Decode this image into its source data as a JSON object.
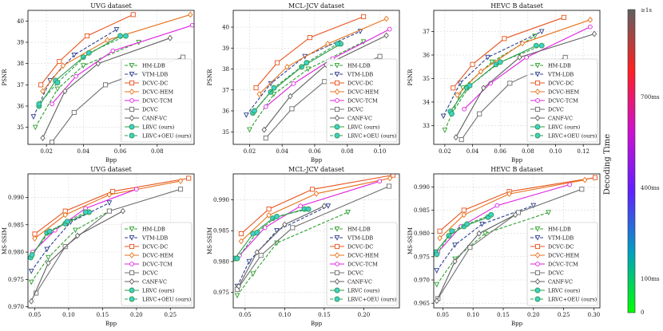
{
  "colorbar": {
    "label": "Decoding Time",
    "ticks": [
      "≥1s",
      "700ms",
      "400ms",
      "100ms",
      "0"
    ],
    "tick_values": [
      1000,
      700,
      400,
      100,
      0
    ]
  },
  "styles": {
    "HM-LDB": {
      "color": "#2ca02c",
      "dash": "4,2",
      "marker": "tri_down"
    },
    "VTM-LDB": {
      "color": "#2d3f8f",
      "dash": "4,2",
      "marker": "tri_down"
    },
    "DCVC-DC": {
      "color": "#e8531c",
      "dash": "",
      "marker": "square"
    },
    "DCVC-HEM": {
      "color": "#e8721c",
      "dash": "",
      "marker": "diamond"
    },
    "DCVC-TCM": {
      "color": "#e020e0",
      "dash": "",
      "marker": "circle"
    },
    "DCVC": {
      "color": "#707070",
      "dash": "",
      "marker": "square"
    },
    "CANF-VC": {
      "color": "#606060",
      "dash": "",
      "marker": "diamond"
    },
    "LRVC (ours)": {
      "color": "#2e9e4a",
      "dash": "",
      "marker": "circle_cyan"
    },
    "LRVC+OEU (ours)": {
      "color": "#2e9e4a",
      "dash": "4,2",
      "marker": "circle_cyan"
    }
  },
  "chart_data": [
    {
      "type": "line",
      "title": "UVG dataset",
      "xlabel": "Bpp",
      "ylabel": "PSNR",
      "xlim": [
        0.01,
        0.1
      ],
      "ylim": [
        34.2,
        40.5
      ],
      "xticks": [
        0.02,
        0.04,
        0.06,
        0.08
      ],
      "xtick_labels": [
        "0.02",
        "0.04",
        "0.06",
        "0.08"
      ],
      "yticks": [
        35,
        36,
        37,
        38,
        39,
        40
      ],
      "ytick_labels": [
        "35",
        "36",
        "37",
        "38",
        "39",
        "40"
      ],
      "series": [
        {
          "name": "HM-LDB",
          "x": [
            0.014,
            0.026,
            0.04,
            0.07
          ],
          "y": [
            35.0,
            36.8,
            37.9,
            39.0
          ]
        },
        {
          "name": "VTM-LDB",
          "x": [
            0.013,
            0.022,
            0.035,
            0.058
          ],
          "y": [
            35.5,
            37.2,
            38.4,
            39.6
          ]
        },
        {
          "name": "DCVC-DC",
          "x": [
            0.017,
            0.027,
            0.042,
            0.067
          ],
          "y": [
            37.0,
            38.1,
            39.3,
            40.3
          ]
        },
        {
          "name": "DCVC-HEM",
          "x": [
            0.018,
            0.029,
            0.053,
            0.098
          ],
          "y": [
            36.7,
            37.9,
            39.1,
            40.3
          ]
        },
        {
          "name": "DCVC-TCM",
          "x": [
            0.023,
            0.036,
            0.056,
            0.099
          ],
          "y": [
            36.1,
            37.4,
            38.6,
            39.8
          ]
        },
        {
          "name": "DCVC",
          "x": [
            0.023,
            0.035,
            0.052,
            0.094
          ],
          "y": [
            34.3,
            35.7,
            37.0,
            38.3
          ]
        },
        {
          "name": "CANF-VC",
          "x": [
            0.018,
            0.03,
            0.048,
            0.087
          ],
          "y": [
            34.5,
            36.7,
            38.0,
            39.2
          ]
        },
        {
          "name": "LRVC (ours)",
          "x": [
            0.016,
            0.025,
            0.04,
            0.06
          ],
          "y": [
            36.0,
            37.2,
            38.3,
            39.3
          ]
        },
        {
          "name": "LRVC+OEU (ours)",
          "x": [
            0.016,
            0.026,
            0.043,
            0.063
          ],
          "y": [
            36.1,
            37.1,
            38.5,
            39.3
          ]
        }
      ]
    },
    {
      "type": "line",
      "title": "MCL-JCV dataset",
      "xlabel": "Bpp",
      "ylabel": "PSNR",
      "xlim": [
        0.01,
        0.112
      ],
      "ylim": [
        34.4,
        40.8
      ],
      "xticks": [
        0.02,
        0.04,
        0.06,
        0.08,
        0.1
      ],
      "xtick_labels": [
        "0.02",
        "0.04",
        "0.06",
        "0.08",
        "0.10"
      ],
      "yticks": [
        35,
        36,
        37,
        38,
        39,
        40
      ],
      "ytick_labels": [
        "35",
        "36",
        "37",
        "38",
        "39",
        "40"
      ],
      "series": [
        {
          "name": "HM-LDB",
          "x": [
            0.02,
            0.035,
            0.056,
            0.09
          ],
          "y": [
            35.1,
            36.8,
            38.0,
            39.3
          ]
        },
        {
          "name": "VTM-LDB",
          "x": [
            0.018,
            0.033,
            0.054,
            0.088
          ],
          "y": [
            35.8,
            37.3,
            38.6,
            39.8
          ]
        },
        {
          "name": "DCVC-DC",
          "x": [
            0.024,
            0.037,
            0.057,
            0.09
          ],
          "y": [
            37.1,
            38.3,
            39.5,
            40.5
          ]
        },
        {
          "name": "DCVC-HEM",
          "x": [
            0.026,
            0.043,
            0.068,
            0.104
          ],
          "y": [
            36.8,
            38.1,
            39.2,
            40.4
          ]
        },
        {
          "name": "DCVC-TCM",
          "x": [
            0.03,
            0.047,
            0.071,
            0.106
          ],
          "y": [
            36.2,
            37.3,
            38.5,
            39.9
          ]
        },
        {
          "name": "DCVC",
          "x": [
            0.03,
            0.046,
            0.066,
            0.1
          ],
          "y": [
            34.7,
            36.1,
            37.4,
            38.6
          ]
        },
        {
          "name": "CANF-VC",
          "x": [
            0.029,
            0.045,
            0.067,
            0.104
          ],
          "y": [
            35.1,
            36.7,
            38.2,
            39.6
          ]
        },
        {
          "name": "LRVC (ours)",
          "x": [
            0.022,
            0.033,
            0.052,
            0.076
          ],
          "y": [
            35.9,
            36.9,
            38.1,
            39.2
          ]
        },
        {
          "name": "LRVC+OEU (ours)",
          "x": [
            0.023,
            0.035,
            0.055,
            0.074
          ],
          "y": [
            36.0,
            37.1,
            38.3,
            39.2
          ]
        }
      ]
    },
    {
      "type": "line",
      "title": "HEVC B dataset",
      "xlabel": "Bpp",
      "ylabel": "PSNR",
      "xlim": [
        0.012,
        0.132
      ],
      "ylim": [
        32.2,
        37.9
      ],
      "xticks": [
        0.02,
        0.04,
        0.06,
        0.08,
        0.1,
        0.12
      ],
      "xtick_labels": [
        "0.02",
        "0.04",
        "0.06",
        "0.08",
        "0.10",
        "0.12"
      ],
      "yticks": [
        33,
        34,
        35,
        36,
        37
      ],
      "ytick_labels": [
        "33",
        "34",
        "35",
        "36",
        "37"
      ],
      "series": [
        {
          "name": "HM-LDB",
          "x": [
            0.02,
            0.033,
            0.054,
            0.085
          ],
          "y": [
            32.8,
            34.6,
            35.7,
            36.8
          ]
        },
        {
          "name": "VTM-LDB",
          "x": [
            0.019,
            0.031,
            0.051,
            0.09
          ],
          "y": [
            33.4,
            34.8,
            35.9,
            37.0
          ]
        },
        {
          "name": "DCVC-DC",
          "x": [
            0.026,
            0.04,
            0.063,
            0.106
          ],
          "y": [
            34.6,
            35.6,
            36.7,
            37.6
          ]
        },
        {
          "name": "DCVC-HEM",
          "x": [
            0.029,
            0.046,
            0.076,
            0.125
          ],
          "y": [
            34.3,
            35.3,
            36.5,
            37.5
          ]
        },
        {
          "name": "DCVC-TCM",
          "x": [
            0.034,
            0.053,
            0.079,
            0.125
          ],
          "y": [
            33.7,
            34.8,
            35.9,
            37.2
          ]
        },
        {
          "name": "DCVC",
          "x": [
            0.032,
            0.045,
            0.067,
            0.107
          ],
          "y": [
            32.4,
            33.5,
            34.8,
            35.9
          ]
        },
        {
          "name": "CANF-VC",
          "x": [
            0.028,
            0.048,
            0.074,
            0.128
          ],
          "y": [
            32.5,
            34.6,
            35.9,
            36.9
          ]
        },
        {
          "name": "LRVC (ours)",
          "x": [
            0.024,
            0.036,
            0.057,
            0.086
          ],
          "y": [
            33.6,
            34.6,
            35.6,
            36.4
          ]
        },
        {
          "name": "LRVC+OEU (ours)",
          "x": [
            0.025,
            0.038,
            0.06,
            0.09
          ],
          "y": [
            33.5,
            34.7,
            35.7,
            36.4
          ]
        }
      ]
    },
    {
      "type": "line",
      "title": "UVG dataset",
      "xlabel": "Bpp",
      "ylabel": "MS-SSIM",
      "xlim": [
        0.04,
        0.285
      ],
      "ylim": [
        0.9698,
        0.9943
      ],
      "xticks": [
        0.05,
        0.1,
        0.15,
        0.2,
        0.25
      ],
      "xtick_labels": [
        "0.05",
        "0.10",
        "0.15",
        "0.20",
        "0.25"
      ],
      "yticks": [
        0.97,
        0.975,
        0.98,
        0.985,
        0.99
      ],
      "ytick_labels": [
        "0.970",
        "0.975",
        "0.980",
        "0.985",
        "0.990"
      ],
      "series": [
        {
          "name": "HM-LDB",
          "x": [
            0.045,
            0.07,
            0.11,
            0.16
          ],
          "y": [
            0.9745,
            0.979,
            0.984,
            0.9875
          ]
        },
        {
          "name": "VTM-LDB",
          "x": [
            0.045,
            0.068,
            0.103,
            0.16
          ],
          "y": [
            0.9765,
            0.9805,
            0.9855,
            0.989
          ]
        },
        {
          "name": "DCVC-DC",
          "x": [
            0.05,
            0.095,
            0.165,
            0.277
          ],
          "y": [
            0.9833,
            0.9875,
            0.9911,
            0.9935
          ]
        },
        {
          "name": "DCVC-HEM",
          "x": [
            0.05,
            0.095,
            0.16,
            0.265
          ],
          "y": [
            0.9825,
            0.9868,
            0.9905,
            0.993
          ]
        },
        {
          "name": "DCVC-TCM",
          "x": [
            0.047,
            0.08,
            0.125,
            0.2
          ],
          "y": [
            0.98,
            0.984,
            0.988,
            0.9915
          ]
        },
        {
          "name": "DCVC",
          "x": [
            0.052,
            0.095,
            0.16,
            0.265
          ],
          "y": [
            0.9725,
            0.981,
            0.9875,
            0.9915
          ]
        },
        {
          "name": "CANF-VC",
          "x": [
            0.045,
            0.07,
            0.113,
            0.18
          ],
          "y": [
            0.971,
            0.978,
            0.983,
            0.9875
          ]
        },
        {
          "name": "LRVC (ours)",
          "x": [
            0.044,
            0.068,
            0.095,
            0.13
          ],
          "y": [
            0.979,
            0.9835,
            0.9852,
            0.9873
          ]
        },
        {
          "name": "LRVC+OEU (ours)",
          "x": [
            0.046,
            0.072,
            0.098,
            0.125
          ],
          "y": [
            0.9795,
            0.9838,
            0.9856,
            0.9873
          ]
        }
      ]
    },
    {
      "type": "line",
      "title": "MCL-JCV dataset",
      "xlabel": "Bpp",
      "ylabel": "MS-SSIM",
      "xlim": [
        0.035,
        0.245
      ],
      "ylim": [
        0.9725,
        0.9942
      ],
      "xticks": [
        0.05,
        0.1,
        0.15,
        0.2
      ],
      "xtick_labels": [
        "0.05",
        "0.10",
        "0.15",
        "0.20"
      ],
      "yticks": [
        0.975,
        0.98,
        0.985,
        0.99
      ],
      "ytick_labels": [
        "0.975",
        "0.980",
        "0.985",
        "0.990"
      ],
      "series": [
        {
          "name": "HM-LDB",
          "x": [
            0.04,
            0.06,
            0.09,
            0.18
          ],
          "y": [
            0.9745,
            0.978,
            0.983,
            0.988
          ]
        },
        {
          "name": "VTM-LDB",
          "x": [
            0.04,
            0.055,
            0.09,
            0.155
          ],
          "y": [
            0.976,
            0.98,
            0.985,
            0.989
          ]
        },
        {
          "name": "DCVC-DC",
          "x": [
            0.045,
            0.08,
            0.135,
            0.237
          ],
          "y": [
            0.9845,
            0.9885,
            0.9917,
            0.994
          ]
        },
        {
          "name": "DCVC-HEM",
          "x": [
            0.045,
            0.08,
            0.14,
            0.233
          ],
          "y": [
            0.9833,
            0.9875,
            0.991,
            0.9935
          ]
        },
        {
          "name": "DCVC-TCM",
          "x": [
            0.043,
            0.075,
            0.12,
            0.22
          ],
          "y": [
            0.981,
            0.9855,
            0.989,
            0.993
          ]
        },
        {
          "name": "DCVC",
          "x": [
            0.04,
            0.07,
            0.11,
            0.232
          ],
          "y": [
            0.9755,
            0.981,
            0.9855,
            0.9922
          ]
        },
        {
          "name": "CANF-VC",
          "x": [
            0.042,
            0.065,
            0.1,
            0.15
          ],
          "y": [
            0.976,
            0.9815,
            0.986,
            0.989
          ]
        },
        {
          "name": "LRVC (ours)",
          "x": [
            0.037,
            0.06,
            0.085,
            0.125
          ],
          "y": [
            0.9805,
            0.9845,
            0.987,
            0.9885
          ]
        },
        {
          "name": "LRVC+OEU (ours)",
          "x": [
            0.04,
            0.065,
            0.09,
            0.13
          ],
          "y": [
            0.9805,
            0.9847,
            0.9873,
            0.9885
          ]
        }
      ]
    },
    {
      "type": "line",
      "title": "HEVC B dataset",
      "xlabel": "Bpp",
      "ylabel": "MS-SSIM",
      "xlim": [
        0.035,
        0.31
      ],
      "ylim": [
        0.964,
        0.9928
      ],
      "xticks": [
        0.05,
        0.1,
        0.15,
        0.2,
        0.25,
        0.3
      ],
      "xtick_labels": [
        "0.05",
        "0.10",
        "0.15",
        "0.20",
        "0.25",
        "0.30"
      ],
      "yticks": [
        0.965,
        0.97,
        0.975,
        0.98,
        0.985,
        0.99
      ],
      "ytick_labels": [
        "0.965",
        "0.970",
        "0.975",
        "0.980",
        "0.985",
        "0.990"
      ],
      "series": [
        {
          "name": "HM-LDB",
          "x": [
            0.04,
            0.07,
            0.12,
            0.225
          ],
          "y": [
            0.969,
            0.9745,
            0.98,
            0.9845
          ]
        },
        {
          "name": "VTM-LDB",
          "x": [
            0.04,
            0.07,
            0.115,
            0.2
          ],
          "y": [
            0.972,
            0.9775,
            0.982,
            0.986
          ]
        },
        {
          "name": "DCVC-DC",
          "x": [
            0.045,
            0.085,
            0.16,
            0.302
          ],
          "y": [
            0.9805,
            0.985,
            0.989,
            0.992
          ]
        },
        {
          "name": "DCVC-HEM",
          "x": [
            0.045,
            0.085,
            0.16,
            0.285
          ],
          "y": [
            0.979,
            0.984,
            0.9885,
            0.9915
          ]
        },
        {
          "name": "DCVC-TCM",
          "x": [
            0.042,
            0.08,
            0.14,
            0.26
          ],
          "y": [
            0.976,
            0.9815,
            0.986,
            0.9905
          ]
        },
        {
          "name": "DCVC",
          "x": [
            0.042,
            0.095,
            0.175,
            0.28
          ],
          "y": [
            0.966,
            0.977,
            0.9845,
            0.9895
          ]
        },
        {
          "name": "CANF-VC",
          "x": [
            0.04,
            0.07,
            0.11,
            0.17
          ],
          "y": [
            0.9655,
            0.974,
            0.98,
            0.984
          ]
        },
        {
          "name": "LRVC (ours)",
          "x": [
            0.038,
            0.06,
            0.085,
            0.125
          ],
          "y": [
            0.976,
            0.9795,
            0.9815,
            0.9835
          ]
        },
        {
          "name": "LRVC+OEU (ours)",
          "x": [
            0.04,
            0.065,
            0.09,
            0.13
          ],
          "y": [
            0.9755,
            0.9805,
            0.982,
            0.984
          ]
        }
      ]
    }
  ]
}
